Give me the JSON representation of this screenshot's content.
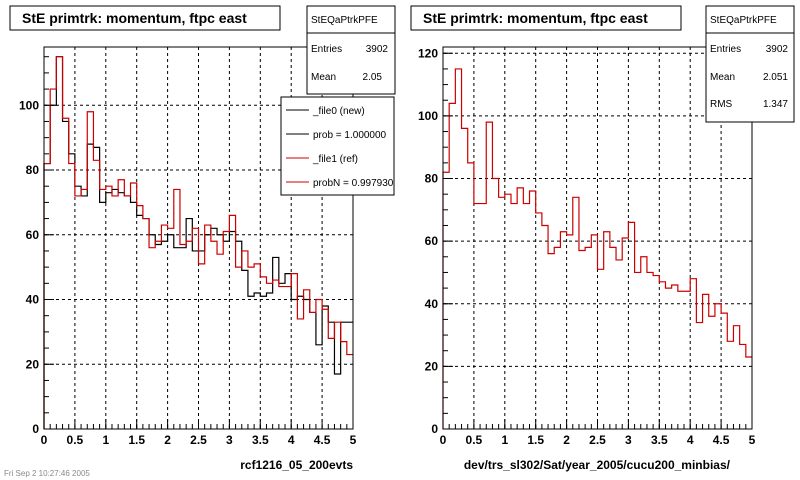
{
  "footer_text": "Fri Sep 2 10:27:46 2005",
  "colors": {
    "new": "#000000",
    "ref": "#cc0000"
  },
  "chart_data": [
    {
      "type": "histogram",
      "title": "StE primtrk: momentum, ftpc east",
      "xlabel": "rcf1216_05_200evts",
      "xlim": [
        0,
        5
      ],
      "ylim": [
        0,
        118
      ],
      "x_ticks": [
        "0",
        "0.5",
        "1",
        "1.5",
        "2",
        "2.5",
        "3",
        "3.5",
        "4",
        "4.5",
        "5"
      ],
      "y_ticks": [
        "0",
        "20",
        "40",
        "60",
        "80",
        "100"
      ],
      "grid": true,
      "bin_width": 0.1,
      "stats": {
        "name": "StEQaPtrkPFE",
        "entries_label": "Entries",
        "entries": "3902",
        "mean_label": "Mean",
        "mean": "2.05"
      },
      "legend": {
        "placement": "top-right",
        "entries": [
          {
            "label": "_file0 (new)",
            "color": "#000000"
          },
          {
            "label": "prob = 1.000000",
            "color": "#000000"
          },
          {
            "label": "_file1 (ref)",
            "color": "#cc0000"
          },
          {
            "label": "probN = 0.997930",
            "color": "#cc0000"
          }
        ]
      },
      "series": [
        {
          "color": "#000000",
          "values": [
            82,
            100,
            115,
            95,
            85,
            75,
            72,
            88,
            87,
            70,
            73,
            74,
            73,
            72,
            70,
            66,
            65,
            60,
            57,
            58,
            60,
            56,
            56,
            65,
            55,
            55,
            60,
            62,
            60,
            58,
            61,
            58,
            49,
            41,
            42,
            41,
            42,
            53,
            45,
            48,
            40,
            41,
            40,
            36,
            26,
            38,
            33,
            17,
            33,
            33
          ]
        },
        {
          "color": "#cc0000",
          "values": [
            82,
            105,
            115,
            96,
            82,
            72,
            74,
            98,
            83,
            74,
            75,
            72,
            77,
            72,
            76,
            69,
            65,
            56,
            58,
            63,
            62,
            74,
            57,
            58,
            62,
            51,
            63,
            58,
            54,
            61,
            66,
            50,
            55,
            50,
            51,
            47,
            45,
            46,
            44,
            44,
            48,
            34,
            43,
            36,
            40,
            37,
            28,
            33,
            27,
            23
          ]
        }
      ]
    },
    {
      "type": "histogram",
      "title": "StE primtrk: momentum, ftpc east",
      "xlabel": "dev/trs_sl302/Sat/year_2005/cucu200_minbias/",
      "xlim": [
        0,
        5
      ],
      "ylim": [
        0,
        122
      ],
      "x_ticks": [
        "0",
        "0.5",
        "1",
        "1.5",
        "2",
        "2.5",
        "3",
        "3.5",
        "4",
        "4.5",
        "5"
      ],
      "y_ticks": [
        "0",
        "20",
        "40",
        "60",
        "80",
        "100",
        "120"
      ],
      "grid": true,
      "bin_width": 0.1,
      "stats": {
        "name": "StEQaPtrkPFE",
        "entries_label": "Entries",
        "entries": "3902",
        "mean_label": "Mean",
        "mean": "2.051",
        "rms_label": "RMS",
        "rms": "1.347"
      },
      "series": [
        {
          "color": "#cc0000",
          "values": [
            82,
            104,
            115,
            96,
            85,
            72,
            72,
            98,
            80,
            74,
            75,
            72,
            77,
            72,
            76,
            69,
            65,
            56,
            58,
            63,
            62,
            74,
            57,
            58,
            62,
            51,
            63,
            58,
            54,
            61,
            66,
            50,
            55,
            50,
            49,
            47,
            45,
            46,
            44,
            44,
            48,
            34,
            43,
            36,
            40,
            37,
            28,
            33,
            27,
            23
          ]
        }
      ]
    }
  ]
}
